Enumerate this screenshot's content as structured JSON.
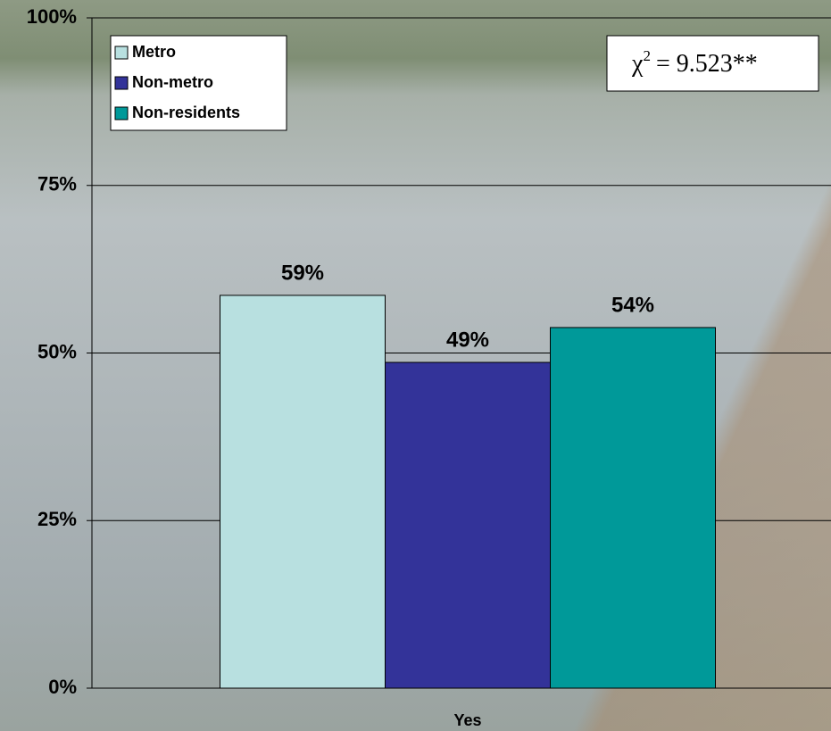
{
  "chart_data": {
    "type": "bar",
    "categories": [
      "Yes"
    ],
    "series": [
      {
        "name": "Metro",
        "color": "#b8e0e0",
        "values": [
          58.6
        ],
        "value_labels": [
          "59%"
        ]
      },
      {
        "name": "Non-metro",
        "color": "#333399",
        "values": [
          48.6
        ],
        "value_labels": [
          "49%"
        ]
      },
      {
        "name": "Non-residents",
        "color": "#009999",
        "values": [
          53.8
        ],
        "value_labels": [
          "54%"
        ]
      }
    ],
    "ylim": [
      0,
      100
    ],
    "yticks": [
      {
        "value": 0,
        "label": "0%"
      },
      {
        "value": 25,
        "label": "25%"
      },
      {
        "value": 50,
        "label": "50%"
      },
      {
        "value": 75,
        "label": "75%"
      },
      {
        "value": 100,
        "label": "100%"
      }
    ],
    "grid": true,
    "legend": "top-left",
    "annotation": {
      "symbol": "χ",
      "superscript": "2",
      "text": "= 9.523**"
    }
  }
}
